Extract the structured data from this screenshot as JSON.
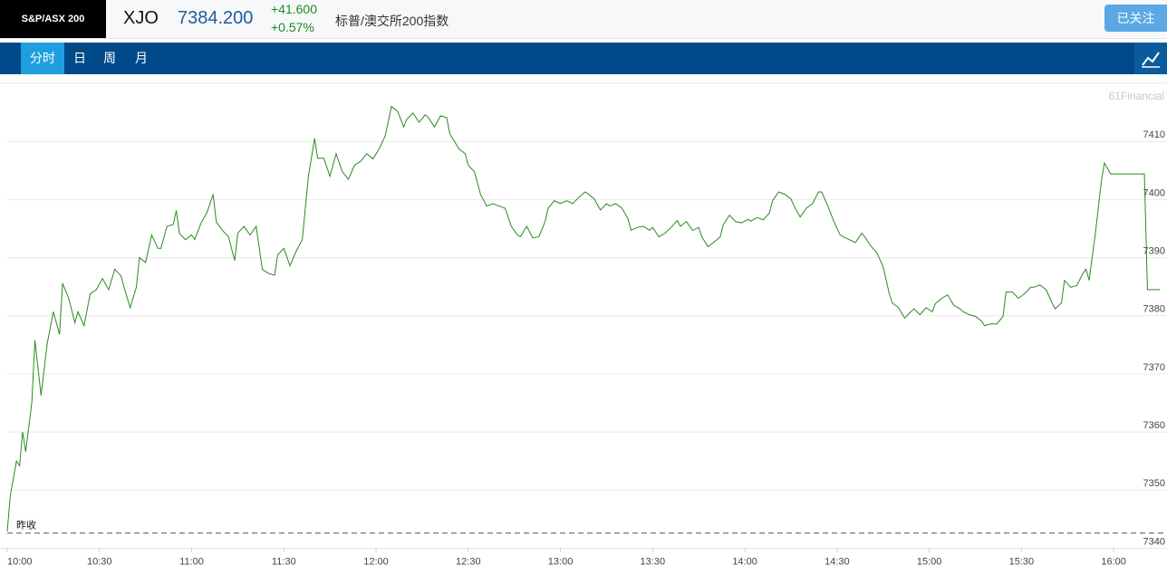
{
  "header": {
    "badge": "S&P/ASX 200",
    "symbol": "XJO",
    "price": "7384.200",
    "change": "+41.600",
    "change_pct": "+0.57%",
    "name": "标普/澳交所200指数",
    "button": "已关注"
  },
  "tabs": [
    "分时",
    "日",
    "周",
    "月"
  ],
  "chart_data": {
    "type": "line",
    "watermark": "61Financial",
    "color": "#2a8a1f",
    "prev_close": {
      "label": "昨收",
      "value": 7342.6
    },
    "xlim": [
      600,
      975
    ],
    "ylim": [
      7340,
      7420
    ],
    "xticks": [
      {
        "value": 600,
        "label": "10:00"
      },
      {
        "value": 630,
        "label": "10:30"
      },
      {
        "value": 660,
        "label": "11:00"
      },
      {
        "value": 690,
        "label": "11:30"
      },
      {
        "value": 720,
        "label": "12:00"
      },
      {
        "value": 750,
        "label": "12:30"
      },
      {
        "value": 780,
        "label": "13:00"
      },
      {
        "value": 810,
        "label": "13:30"
      },
      {
        "value": 840,
        "label": "14:00"
      },
      {
        "value": 870,
        "label": "14:30"
      },
      {
        "value": 900,
        "label": "15:00"
      },
      {
        "value": 930,
        "label": "15:30"
      },
      {
        "value": 960,
        "label": "16:00"
      }
    ],
    "yticks": [
      7340,
      7350,
      7360,
      7370,
      7380,
      7390,
      7400,
      7410
    ],
    "grid": true,
    "x": [
      600,
      601,
      603,
      604,
      605,
      606,
      608,
      609,
      611,
      613,
      615,
      617,
      618,
      620,
      622,
      623,
      625,
      627,
      629,
      631,
      633,
      635,
      637,
      638,
      640,
      642,
      643,
      645,
      647,
      649,
      650,
      652,
      654,
      655,
      656,
      658,
      660,
      661,
      663,
      665,
      667,
      668,
      670,
      672,
      674,
      675,
      677,
      679,
      681,
      683,
      685,
      687,
      688,
      690,
      692,
      694,
      696,
      698,
      700,
      701,
      703,
      705,
      707,
      709,
      711,
      713,
      715,
      717,
      719,
      721,
      723,
      725,
      727,
      729,
      730,
      732,
      734,
      736,
      737,
      739,
      741,
      743,
      744,
      747,
      749,
      750,
      752,
      754,
      756,
      758,
      760,
      762,
      764,
      766,
      767,
      769,
      771,
      773,
      775,
      776,
      778,
      780,
      782,
      784,
      786,
      788,
      789,
      791,
      793,
      795,
      796,
      798,
      800,
      802,
      803,
      805,
      807,
      809,
      810,
      812,
      814,
      816,
      818,
      819,
      821,
      823,
      825,
      826,
      828,
      830,
      832,
      833,
      835,
      837,
      839,
      841,
      842,
      844,
      846,
      848,
      849,
      851,
      853,
      855,
      856,
      858,
      860,
      862,
      864,
      865,
      867,
      869,
      871,
      872,
      874,
      876,
      878,
      879,
      881,
      883,
      885,
      887,
      888,
      890,
      892,
      894,
      895,
      897,
      899,
      901,
      902,
      904,
      906,
      908,
      910,
      911,
      913,
      915,
      917,
      918,
      920,
      922,
      924,
      925,
      927,
      929,
      931,
      933,
      934,
      936,
      938,
      940,
      941,
      943,
      944,
      946,
      948,
      950,
      951,
      952,
      954,
      956,
      957,
      959,
      970,
      971,
      975
    ],
    "values": [
      7342.9,
      7349.1,
      7355.0,
      7354.2,
      7360.0,
      7356.6,
      7365.1,
      7375.8,
      7366.3,
      7375.2,
      7380.7,
      7376.8,
      7385.6,
      7383.0,
      7378.8,
      7380.7,
      7378.3,
      7383.8,
      7384.5,
      7386.4,
      7384.5,
      7388.0,
      7386.9,
      7384.9,
      7381.4,
      7384.9,
      7390.0,
      7389.2,
      7393.9,
      7391.6,
      7391.6,
      7395.4,
      7395.7,
      7398.1,
      7394.2,
      7393.1,
      7393.9,
      7393.1,
      7395.9,
      7397.8,
      7400.9,
      7396.2,
      7394.7,
      7393.6,
      7389.5,
      7394.2,
      7395.4,
      7393.9,
      7395.4,
      7388.0,
      7387.3,
      7387.0,
      7390.5,
      7391.6,
      7388.6,
      7391.1,
      7393.1,
      7404.0,
      7410.5,
      7407.1,
      7407.1,
      7404.0,
      7407.9,
      7404.8,
      7403.5,
      7405.9,
      7406.6,
      7407.9,
      7407.0,
      7408.7,
      7411.0,
      7416.0,
      7415.2,
      7412.5,
      7413.8,
      7414.9,
      7413.3,
      7414.6,
      7414.1,
      7412.5,
      7414.4,
      7414.1,
      7411.3,
      7408.7,
      7407.9,
      7405.9,
      7404.8,
      7400.9,
      7398.9,
      7399.3,
      7398.9,
      7398.5,
      7395.4,
      7393.9,
      7393.6,
      7395.4,
      7393.4,
      7393.6,
      7396.2,
      7398.5,
      7399.8,
      7399.3,
      7399.8,
      7399.3,
      7400.4,
      7401.3,
      7401.0,
      7400.1,
      7398.2,
      7399.3,
      7398.9,
      7399.3,
      7398.5,
      7396.7,
      7394.7,
      7395.2,
      7395.4,
      7394.7,
      7395.2,
      7393.6,
      7394.2,
      7395.2,
      7396.4,
      7395.4,
      7396.2,
      7394.7,
      7395.2,
      7393.6,
      7391.9,
      7392.7,
      7393.6,
      7395.7,
      7397.3,
      7396.2,
      7396.0,
      7396.6,
      7396.3,
      7396.9,
      7396.5,
      7397.7,
      7399.8,
      7401.3,
      7400.9,
      7400.1,
      7398.9,
      7397.0,
      7398.5,
      7399.3,
      7401.3,
      7401.3,
      7398.9,
      7396.2,
      7393.9,
      7393.6,
      7393.1,
      7392.6,
      7394.2,
      7393.6,
      7392.0,
      7390.8,
      7388.4,
      7383.8,
      7382.2,
      7381.4,
      7379.6,
      7380.7,
      7381.2,
      7380.2,
      7381.4,
      7380.7,
      7382.1,
      7383.0,
      7383.6,
      7381.8,
      7381.2,
      7380.7,
      7380.2,
      7379.9,
      7379.1,
      7378.3,
      7378.6,
      7378.6,
      7379.9,
      7384.1,
      7384.1,
      7383.0,
      7383.8,
      7384.9,
      7384.9,
      7385.3,
      7384.5,
      7382.2,
      7381.2,
      7382.2,
      7386.1,
      7384.9,
      7385.2,
      7387.3,
      7388.0,
      7386.1,
      7393.9,
      7403.2,
      7406.3,
      7404.4,
      7404.4,
      7384.5,
      7384.5
    ]
  }
}
